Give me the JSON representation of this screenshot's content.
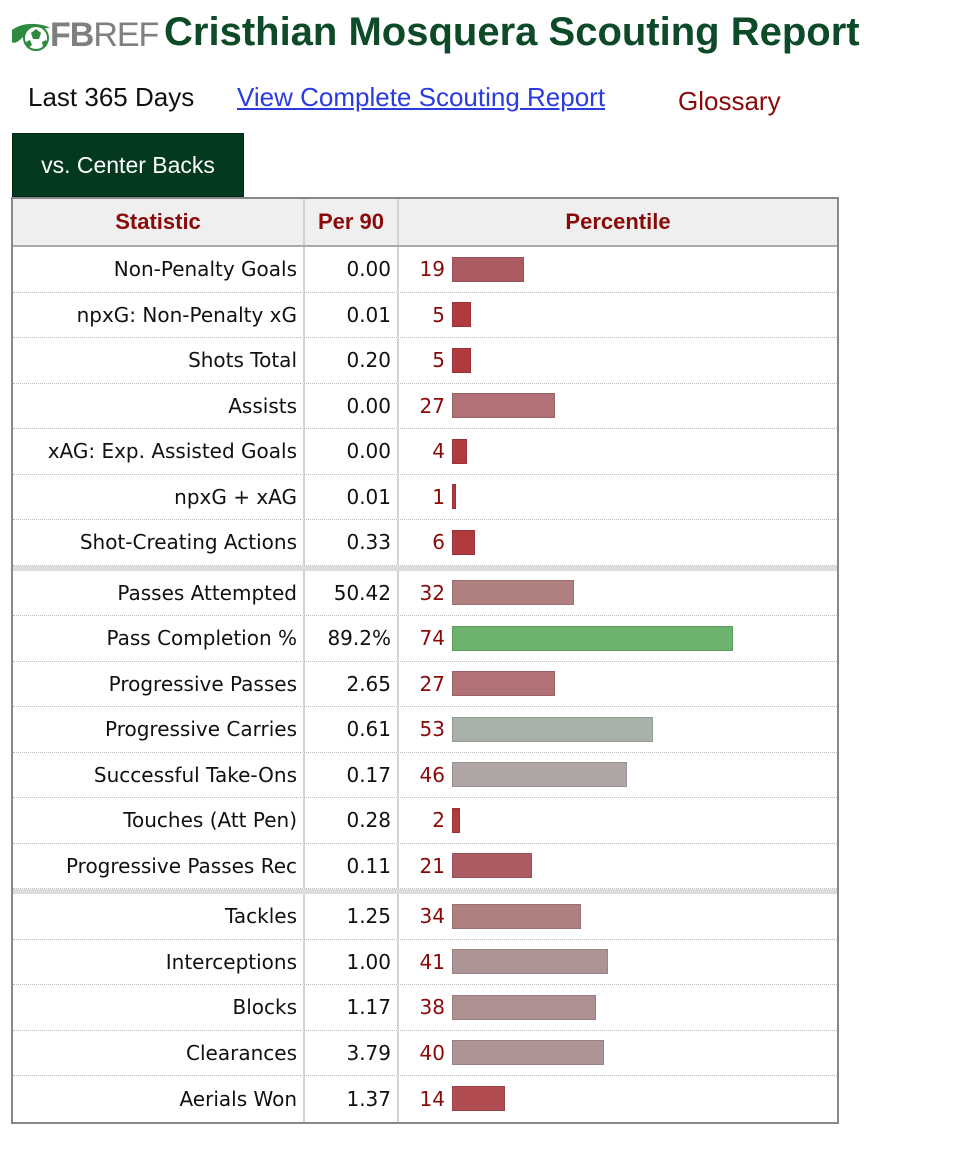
{
  "page": {
    "logo_text_bold": "FB",
    "logo_text": "REF",
    "title": "Cristhian Mosquera Scouting Report"
  },
  "subnav": {
    "period": "Last 365 Days",
    "report_link": "View Complete Scouting Report",
    "glossary": "Glossary"
  },
  "tab": {
    "label": "vs. Center Backs"
  },
  "table": {
    "headers": {
      "statistic": "Statistic",
      "per90": "Per 90",
      "percentile": "Percentile"
    },
    "groups": [
      [
        {
          "stat": "Non-Penalty Goals",
          "per90": "0.00",
          "percentile": 19,
          "color": "#ad5b63"
        },
        {
          "stat": "npxG: Non-Penalty xG",
          "per90": "0.01",
          "percentile": 5,
          "color": "#b03a3e"
        },
        {
          "stat": "Shots Total",
          "per90": "0.20",
          "percentile": 5,
          "color": "#b03a3e"
        },
        {
          "stat": "Assists",
          "per90": "0.00",
          "percentile": 27,
          "color": "#b07177"
        },
        {
          "stat": "xAG: Exp. Assisted Goals",
          "per90": "0.00",
          "percentile": 4,
          "color": "#b03a3e"
        },
        {
          "stat": "npxG + xAG",
          "per90": "0.01",
          "percentile": 1,
          "color": "#b03a3e"
        },
        {
          "stat": "Shot-Creating Actions",
          "per90": "0.33",
          "percentile": 6,
          "color": "#b03a3e"
        }
      ],
      [
        {
          "stat": "Passes Attempted",
          "per90": "50.42",
          "percentile": 32,
          "color": "#b08080"
        },
        {
          "stat": "Pass Completion %",
          "per90": "89.2%",
          "percentile": 74,
          "color": "#6db36d"
        },
        {
          "stat": "Progressive Passes",
          "per90": "2.65",
          "percentile": 27,
          "color": "#b07177"
        },
        {
          "stat": "Progressive Carries",
          "per90": "0.61",
          "percentile": 53,
          "color": "#a7b1a7"
        },
        {
          "stat": "Successful Take-Ons",
          "per90": "0.17",
          "percentile": 46,
          "color": "#afa5a5"
        },
        {
          "stat": "Touches (Att Pen)",
          "per90": "0.28",
          "percentile": 2,
          "color": "#b03a3e"
        },
        {
          "stat": "Progressive Passes Rec",
          "per90": "0.11",
          "percentile": 21,
          "color": "#ad5b63"
        }
      ],
      [
        {
          "stat": "Tackles",
          "per90": "1.25",
          "percentile": 34,
          "color": "#b08080"
        },
        {
          "stat": "Interceptions",
          "per90": "1.00",
          "percentile": 41,
          "color": "#ae9595"
        },
        {
          "stat": "Blocks",
          "per90": "1.17",
          "percentile": 38,
          "color": "#ae9090"
        },
        {
          "stat": "Clearances",
          "per90": "3.79",
          "percentile": 40,
          "color": "#ae9595"
        },
        {
          "stat": "Aerials Won",
          "per90": "1.37",
          "percentile": 14,
          "color": "#b04c52"
        }
      ]
    ]
  }
}
